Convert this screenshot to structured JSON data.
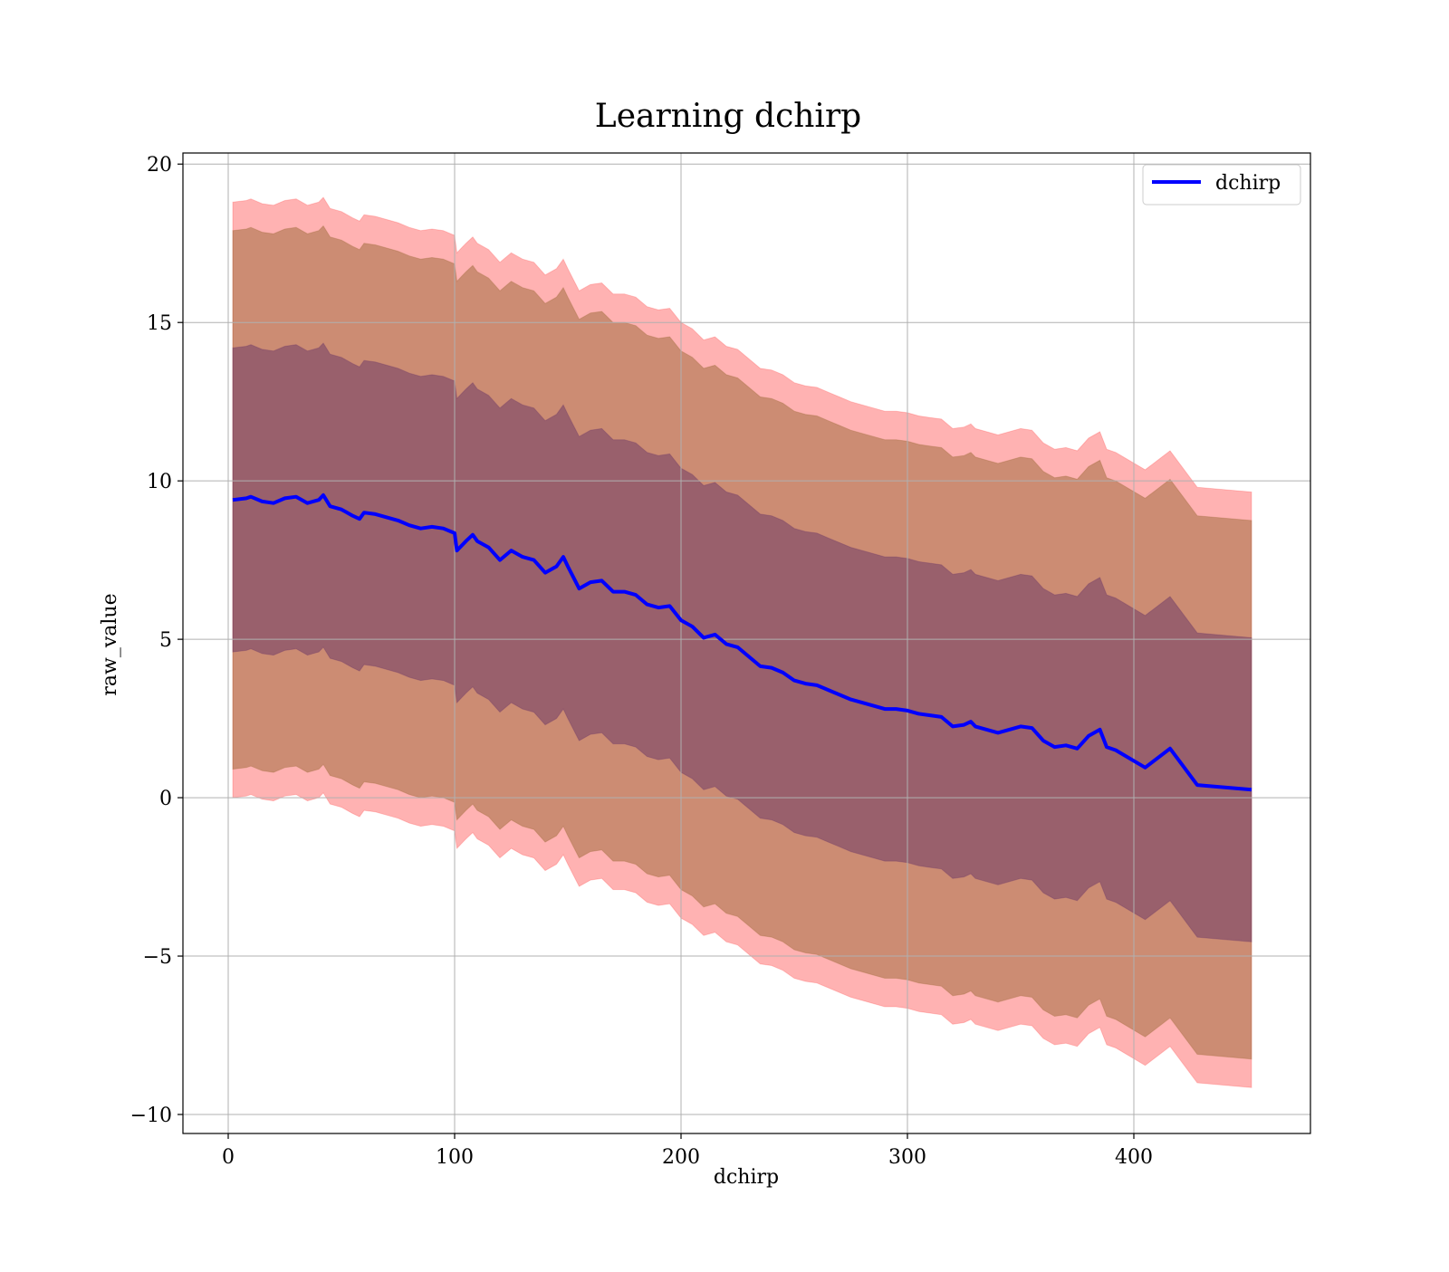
{
  "chart_data": {
    "type": "line",
    "title": "Learning dchirp",
    "xlabel": "dchirp",
    "ylabel": "raw_value",
    "xlim": [
      -20,
      478
    ],
    "ylim": [
      -10.6,
      20.35
    ],
    "xticks": [
      0,
      100,
      200,
      300,
      400
    ],
    "yticks": [
      -10,
      -5,
      0,
      5,
      10,
      15,
      20
    ],
    "xtick_labels": [
      "0",
      "100",
      "200",
      "300",
      "400"
    ],
    "ytick_labels": [
      "−10",
      "−5",
      "0",
      "5",
      "10",
      "15",
      "20"
    ],
    "grid": true,
    "legend": {
      "placement": "top-right",
      "entries": [
        "dchirp"
      ]
    },
    "colors": {
      "line": "#0000ff",
      "band_outer": "#ff0000",
      "band_outer_alpha": 0.3,
      "band_mid": "#996633",
      "band_mid_alpha": 0.5,
      "band_inner": "#663366",
      "band_inner_alpha": 0.5,
      "grid": "#b0b0b0"
    },
    "band_half_widths": {
      "inner": 4.8,
      "mid": 8.5,
      "outer": 9.4
    },
    "series": [
      {
        "name": "dchirp",
        "x": [
          2,
          8,
          10,
          15,
          20,
          25,
          30,
          35,
          40,
          42,
          45,
          50,
          55,
          58,
          60,
          65,
          70,
          75,
          80,
          85,
          90,
          95,
          100,
          101,
          105,
          108,
          110,
          115,
          120,
          125,
          130,
          135,
          140,
          145,
          148,
          150,
          155,
          160,
          165,
          170,
          175,
          180,
          185,
          190,
          195,
          200,
          205,
          210,
          215,
          220,
          225,
          230,
          235,
          240,
          245,
          250,
          255,
          260,
          265,
          270,
          275,
          280,
          285,
          290,
          295,
          300,
          305,
          310,
          315,
          320,
          325,
          328,
          330,
          340,
          350,
          355,
          360,
          365,
          370,
          375,
          380,
          385,
          388,
          392,
          405,
          416,
          428,
          452
        ],
        "y": [
          9.4,
          9.45,
          9.5,
          9.35,
          9.3,
          9.45,
          9.5,
          9.3,
          9.4,
          9.55,
          9.2,
          9.1,
          8.9,
          8.8,
          9.0,
          8.95,
          8.85,
          8.75,
          8.6,
          8.5,
          8.55,
          8.5,
          8.35,
          7.8,
          8.1,
          8.3,
          8.1,
          7.9,
          7.5,
          7.8,
          7.6,
          7.5,
          7.1,
          7.3,
          7.6,
          7.3,
          6.6,
          6.8,
          6.85,
          6.5,
          6.5,
          6.4,
          6.1,
          6.0,
          6.05,
          5.6,
          5.4,
          5.05,
          5.15,
          4.85,
          4.75,
          4.45,
          4.15,
          4.1,
          3.95,
          3.7,
          3.6,
          3.55,
          3.4,
          3.25,
          3.1,
          3.0,
          2.9,
          2.8,
          2.8,
          2.75,
          2.65,
          2.6,
          2.55,
          2.25,
          2.3,
          2.4,
          2.25,
          2.05,
          2.25,
          2.2,
          1.8,
          1.6,
          1.65,
          1.55,
          1.95,
          2.15,
          1.6,
          1.5,
          0.95,
          1.55,
          0.4,
          0.25
        ]
      }
    ]
  }
}
